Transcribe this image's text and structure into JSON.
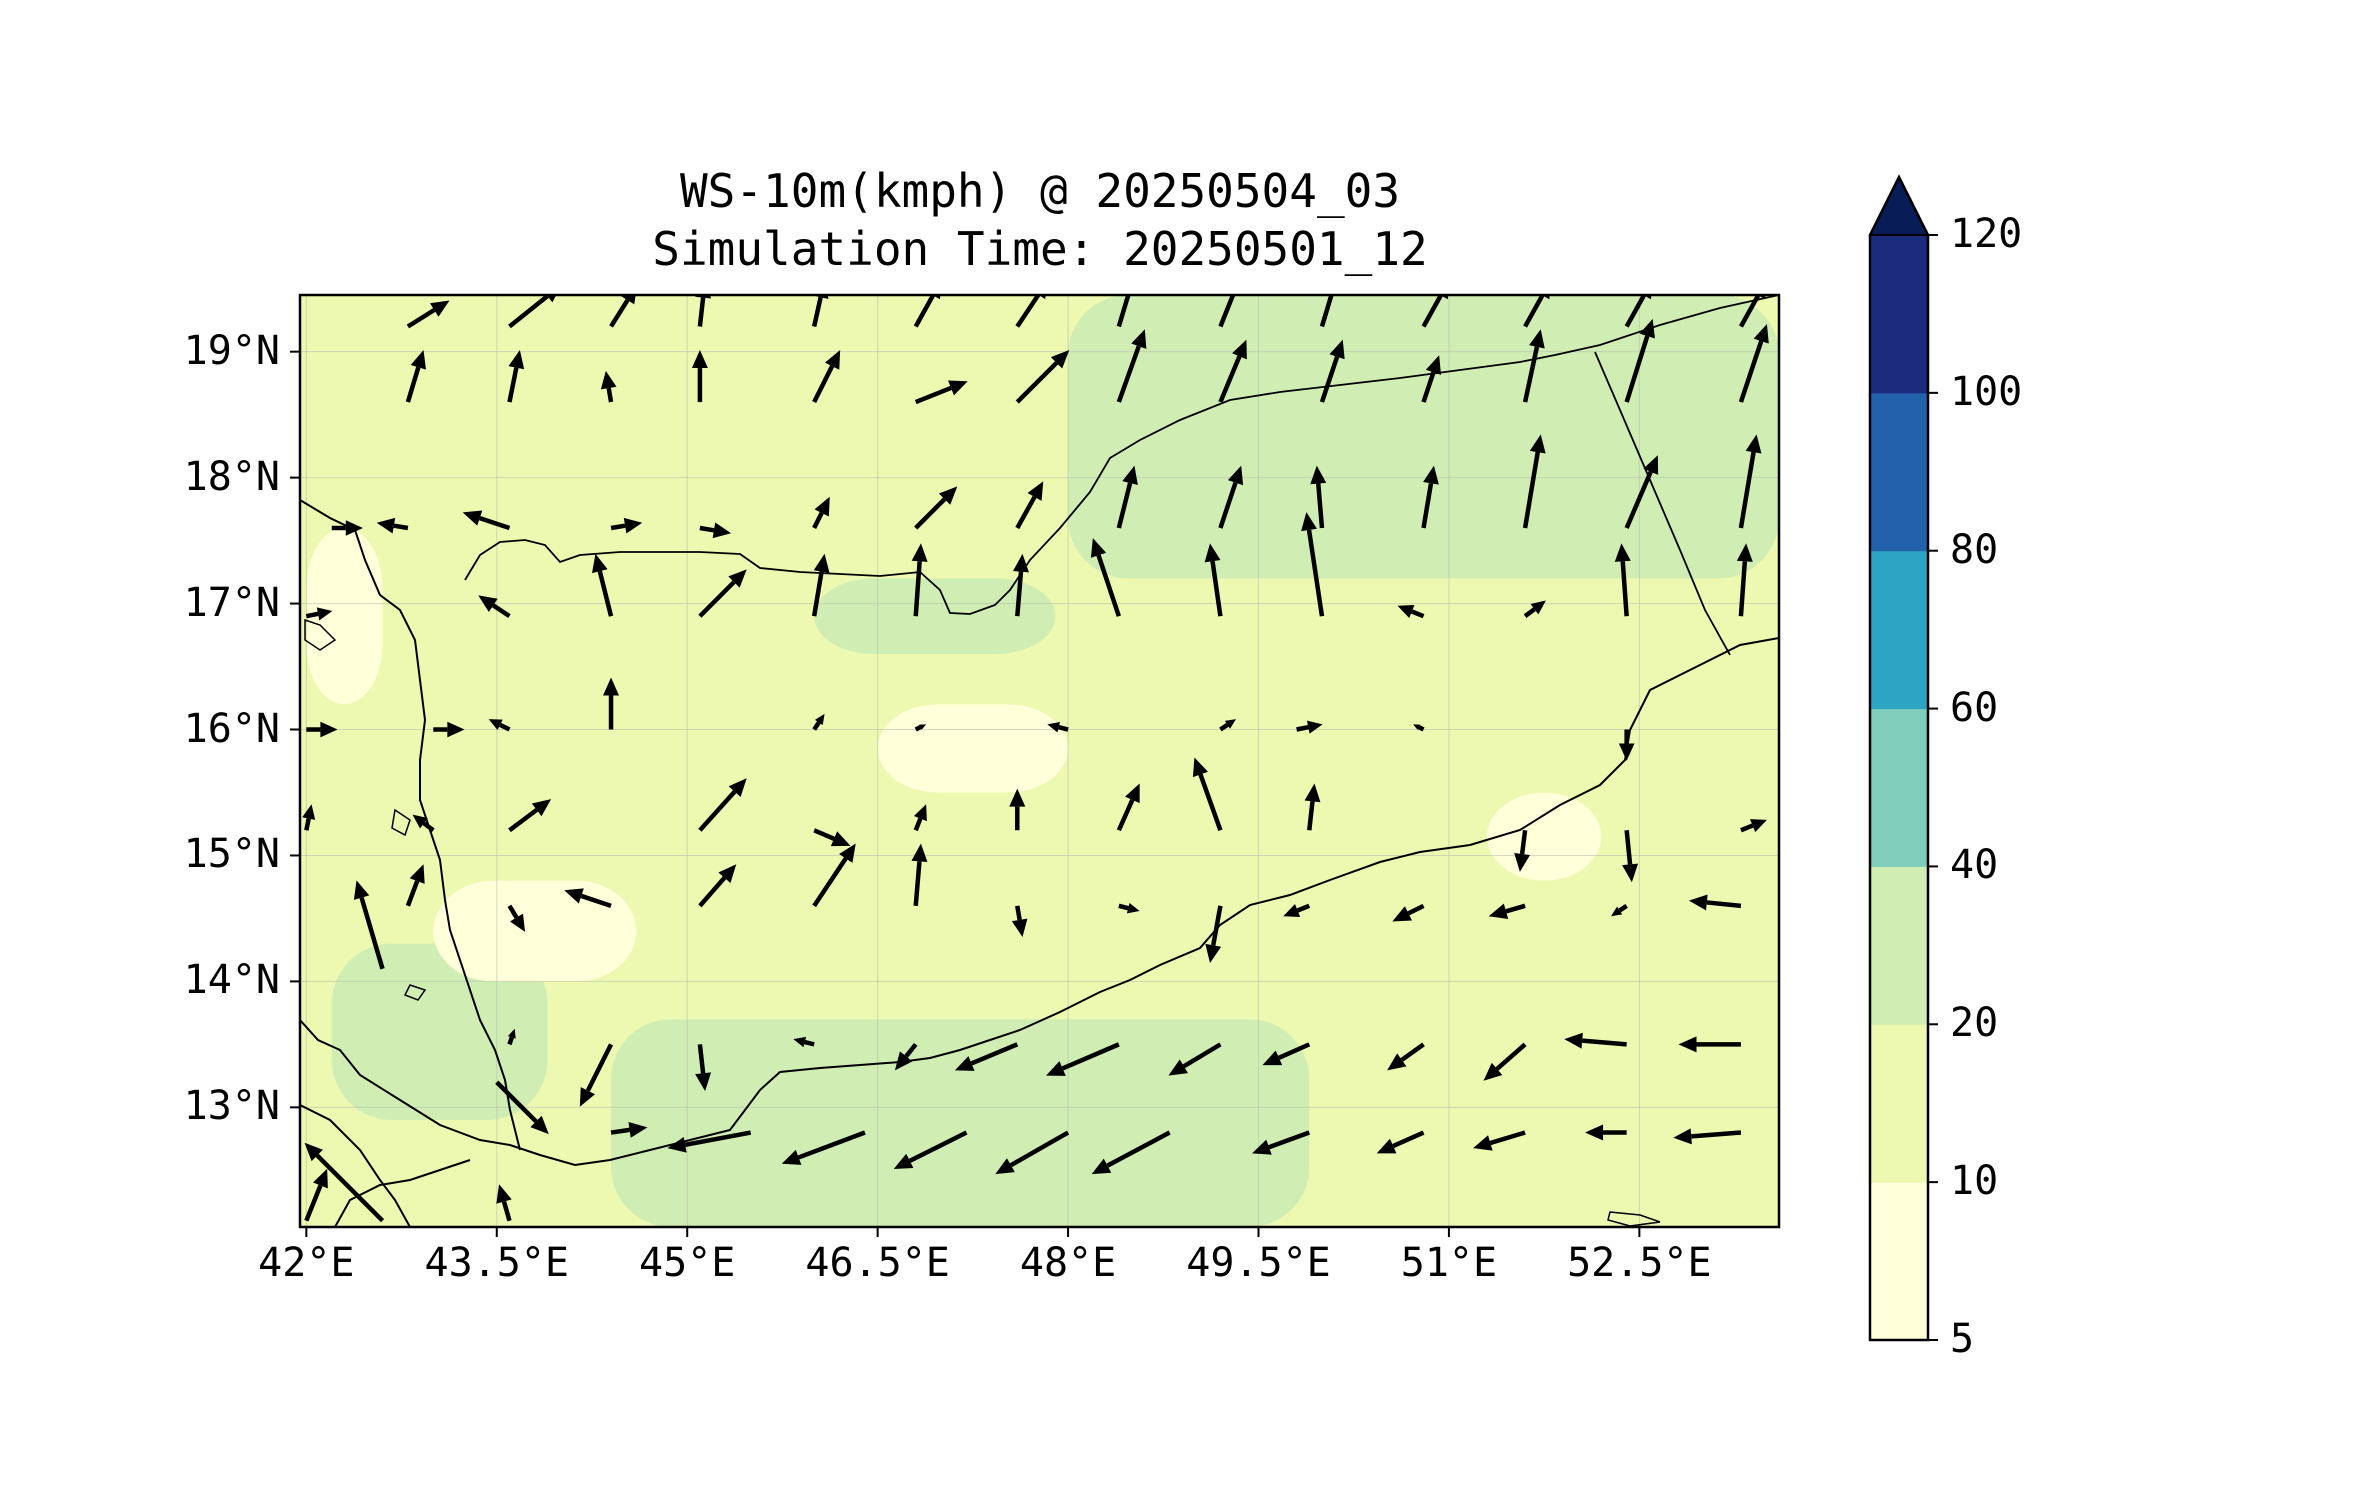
{
  "title": {
    "line1": "WS-10m(kmph) @ 20250504_03",
    "line2": "Simulation Time: 20250501_12"
  },
  "chart_data": {
    "type": "wind-vector-map",
    "variable": "WS-10m(kmph)",
    "valid_time": "20250504_03",
    "simulation_time": "20250501_12",
    "extent": {
      "lon": [
        41.95,
        53.6
      ],
      "lat": [
        12.05,
        19.45
      ]
    },
    "lon_ticks": [
      42,
      43.5,
      45,
      46.5,
      48,
      49.5,
      51,
      52.5
    ],
    "lon_tick_labels": [
      "42°E",
      "43.5°E",
      "45°E",
      "46.5°E",
      "48°E",
      "49.5°E",
      "51°E",
      "52.5°E"
    ],
    "lat_ticks": [
      13,
      14,
      15,
      16,
      17,
      18,
      19
    ],
    "lat_tick_labels": [
      "13°N",
      "14°N",
      "15°N",
      "16°N",
      "17°N",
      "18°N",
      "19°N"
    ],
    "grid": true,
    "colorbar": {
      "levels": [
        5,
        10,
        20,
        40,
        60,
        80,
        100,
        120
      ],
      "labels": [
        "5",
        "10",
        "20",
        "40",
        "60",
        "80",
        "100",
        "120"
      ],
      "colors": [
        "#ffffd9",
        "#edf8b1",
        "#d0edb3",
        "#7fcdbb",
        "#2ca5c4",
        "#2162aa",
        "#1d2b7f"
      ],
      "extend": "max",
      "extend_color": "#081d58",
      "placement": "right"
    },
    "fill_regions": [
      {
        "level": 10,
        "lon": [
          41.95,
          53.6
        ],
        "lat": [
          12.05,
          19.45
        ]
      },
      {
        "level": 20,
        "lon": [
          48.0,
          53.6
        ],
        "lat": [
          17.2,
          19.45
        ]
      },
      {
        "level": 20,
        "lon": [
          44.4,
          49.9
        ],
        "lat": [
          12.05,
          13.7
        ]
      },
      {
        "level": 20,
        "lon": [
          42.2,
          43.9
        ],
        "lat": [
          12.9,
          14.3
        ]
      },
      {
        "level": 20,
        "lon": [
          46.0,
          47.9
        ],
        "lat": [
          16.6,
          17.2
        ]
      },
      {
        "level": 5,
        "lon": [
          42.0,
          42.6
        ],
        "lat": [
          16.2,
          17.6
        ]
      },
      {
        "level": 5,
        "lon": [
          46.5,
          48.0
        ],
        "lat": [
          15.5,
          16.2
        ]
      },
      {
        "level": 5,
        "lon": [
          51.3,
          52.2
        ],
        "lat": [
          14.8,
          15.5
        ]
      },
      {
        "level": 5,
        "lon": [
          43.0,
          44.6
        ],
        "lat": [
          14.0,
          14.8
        ]
      }
    ],
    "wind_vectors": [
      {
        "lon": 42.8,
        "lat": 19.2,
        "u": 8,
        "v": 5
      },
      {
        "lon": 43.6,
        "lat": 19.2,
        "u": 10,
        "v": 8
      },
      {
        "lon": 44.4,
        "lat": 19.2,
        "u": 5,
        "v": 8
      },
      {
        "lon": 45.1,
        "lat": 19.2,
        "u": 1,
        "v": 9
      },
      {
        "lon": 46.0,
        "lat": 19.2,
        "u": 2,
        "v": 9
      },
      {
        "lon": 46.8,
        "lat": 19.2,
        "u": 5,
        "v": 9
      },
      {
        "lon": 47.6,
        "lat": 19.2,
        "u": 6,
        "v": 9
      },
      {
        "lon": 48.4,
        "lat": 19.2,
        "u": 3,
        "v": 10
      },
      {
        "lon": 49.2,
        "lat": 19.2,
        "u": 4,
        "v": 10
      },
      {
        "lon": 50.0,
        "lat": 19.2,
        "u": 3,
        "v": 10
      },
      {
        "lon": 50.8,
        "lat": 19.2,
        "u": 5,
        "v": 9
      },
      {
        "lon": 51.6,
        "lat": 19.2,
        "u": 5,
        "v": 9
      },
      {
        "lon": 52.4,
        "lat": 19.2,
        "u": 5,
        "v": 9
      },
      {
        "lon": 53.3,
        "lat": 19.2,
        "u": 5,
        "v": 9
      },
      {
        "lon": 42.8,
        "lat": 18.6,
        "u": 3,
        "v": 10
      },
      {
        "lon": 43.6,
        "lat": 18.6,
        "u": 2,
        "v": 10
      },
      {
        "lon": 44.4,
        "lat": 18.6,
        "u": -1,
        "v": 6
      },
      {
        "lon": 45.1,
        "lat": 18.6,
        "u": 0,
        "v": 10
      },
      {
        "lon": 46.0,
        "lat": 18.6,
        "u": 5,
        "v": 10
      },
      {
        "lon": 46.8,
        "lat": 18.6,
        "u": 10,
        "v": 4
      },
      {
        "lon": 47.6,
        "lat": 18.6,
        "u": 10,
        "v": 10
      },
      {
        "lon": 48.4,
        "lat": 18.6,
        "u": 5,
        "v": 14
      },
      {
        "lon": 49.2,
        "lat": 18.6,
        "u": 5,
        "v": 12
      },
      {
        "lon": 50.0,
        "lat": 18.6,
        "u": 4,
        "v": 12
      },
      {
        "lon": 50.8,
        "lat": 18.6,
        "u": 3,
        "v": 9
      },
      {
        "lon": 51.6,
        "lat": 18.6,
        "u": 3,
        "v": 14
      },
      {
        "lon": 52.4,
        "lat": 18.6,
        "u": 5,
        "v": 16
      },
      {
        "lon": 53.3,
        "lat": 18.6,
        "u": 5,
        "v": 15
      },
      {
        "lon": 42.2,
        "lat": 17.6,
        "u": 6,
        "v": 0
      },
      {
        "lon": 42.8,
        "lat": 17.6,
        "u": -6,
        "v": 1
      },
      {
        "lon": 43.6,
        "lat": 17.6,
        "u": -9,
        "v": 3
      },
      {
        "lon": 44.4,
        "lat": 17.6,
        "u": 6,
        "v": 1
      },
      {
        "lon": 45.1,
        "lat": 17.6,
        "u": 6,
        "v": -1
      },
      {
        "lon": 46.0,
        "lat": 17.6,
        "u": 3,
        "v": 6
      },
      {
        "lon": 46.8,
        "lat": 17.6,
        "u": 8,
        "v": 8
      },
      {
        "lon": 47.6,
        "lat": 17.6,
        "u": 5,
        "v": 9
      },
      {
        "lon": 48.4,
        "lat": 17.6,
        "u": 3,
        "v": 12
      },
      {
        "lon": 49.2,
        "lat": 17.6,
        "u": 4,
        "v": 12
      },
      {
        "lon": 50.0,
        "lat": 17.6,
        "u": -1,
        "v": 12
      },
      {
        "lon": 50.8,
        "lat": 17.6,
        "u": 2,
        "v": 12
      },
      {
        "lon": 51.6,
        "lat": 17.6,
        "u": 3,
        "v": 18
      },
      {
        "lon": 52.4,
        "lat": 17.6,
        "u": 6,
        "v": 14
      },
      {
        "lon": 53.3,
        "lat": 17.6,
        "u": 3,
        "v": 18
      },
      {
        "lon": 42.0,
        "lat": 16.9,
        "u": 5,
        "v": 1
      },
      {
        "lon": 43.6,
        "lat": 16.9,
        "u": -6,
        "v": 4
      },
      {
        "lon": 44.4,
        "lat": 16.9,
        "u": -3,
        "v": 12
      },
      {
        "lon": 45.1,
        "lat": 16.9,
        "u": 9,
        "v": 9
      },
      {
        "lon": 46.0,
        "lat": 16.9,
        "u": 2,
        "v": 12
      },
      {
        "lon": 46.8,
        "lat": 16.9,
        "u": 1,
        "v": 14
      },
      {
        "lon": 47.6,
        "lat": 16.9,
        "u": 1,
        "v": 12
      },
      {
        "lon": 48.4,
        "lat": 16.9,
        "u": -5,
        "v": 15
      },
      {
        "lon": 49.2,
        "lat": 16.9,
        "u": -2,
        "v": 14
      },
      {
        "lon": 50.0,
        "lat": 16.9,
        "u": -3,
        "v": 20
      },
      {
        "lon": 50.8,
        "lat": 16.9,
        "u": -5,
        "v": 2
      },
      {
        "lon": 51.6,
        "lat": 16.9,
        "u": 4,
        "v": 3
      },
      {
        "lon": 52.4,
        "lat": 16.9,
        "u": -1,
        "v": 14
      },
      {
        "lon": 53.3,
        "lat": 16.9,
        "u": 1,
        "v": 14
      },
      {
        "lon": 42.0,
        "lat": 16.0,
        "u": 6,
        "v": 0
      },
      {
        "lon": 43.0,
        "lat": 16.0,
        "u": 6,
        "v": 0
      },
      {
        "lon": 43.6,
        "lat": 16.0,
        "u": -4,
        "v": 2
      },
      {
        "lon": 44.4,
        "lat": 16.0,
        "u": 0,
        "v": 10
      },
      {
        "lon": 46.0,
        "lat": 16.0,
        "u": 2,
        "v": 3
      },
      {
        "lon": 46.8,
        "lat": 16.0,
        "u": 2,
        "v": 1
      },
      {
        "lon": 48.0,
        "lat": 16.0,
        "u": -4,
        "v": 1
      },
      {
        "lon": 49.2,
        "lat": 16.0,
        "u": 3,
        "v": 2
      },
      {
        "lon": 49.8,
        "lat": 16.0,
        "u": 5,
        "v": 1
      },
      {
        "lon": 50.8,
        "lat": 16.0,
        "u": -2,
        "v": 1
      },
      {
        "lon": 52.4,
        "lat": 16.0,
        "u": 0,
        "v": -6
      },
      {
        "lon": 42.0,
        "lat": 15.2,
        "u": 1,
        "v": 5
      },
      {
        "lon": 43.0,
        "lat": 15.2,
        "u": -4,
        "v": 3
      },
      {
        "lon": 43.6,
        "lat": 15.2,
        "u": 8,
        "v": 6
      },
      {
        "lon": 45.1,
        "lat": 15.2,
        "u": 9,
        "v": 10
      },
      {
        "lon": 46.0,
        "lat": 15.2,
        "u": 7,
        "v": -3
      },
      {
        "lon": 46.8,
        "lat": 15.2,
        "u": 2,
        "v": 5
      },
      {
        "lon": 47.6,
        "lat": 15.2,
        "u": 0,
        "v": 8
      },
      {
        "lon": 48.4,
        "lat": 15.2,
        "u": 4,
        "v": 9
      },
      {
        "lon": 49.2,
        "lat": 15.2,
        "u": -5,
        "v": 14
      },
      {
        "lon": 49.9,
        "lat": 15.2,
        "u": 1,
        "v": 9
      },
      {
        "lon": 51.6,
        "lat": 15.2,
        "u": -1,
        "v": -8
      },
      {
        "lon": 52.4,
        "lat": 15.2,
        "u": 1,
        "v": -10
      },
      {
        "lon": 53.3,
        "lat": 15.2,
        "u": 5,
        "v": 2
      },
      {
        "lon": 42.8,
        "lat": 14.6,
        "u": 3,
        "v": 8
      },
      {
        "lon": 43.6,
        "lat": 14.6,
        "u": 3,
        "v": -5
      },
      {
        "lon": 44.4,
        "lat": 14.6,
        "u": -9,
        "v": 3
      },
      {
        "lon": 45.1,
        "lat": 14.6,
        "u": 7,
        "v": 8
      },
      {
        "lon": 46.0,
        "lat": 14.6,
        "u": 8,
        "v": 12
      },
      {
        "lon": 46.8,
        "lat": 14.6,
        "u": 1,
        "v": 12
      },
      {
        "lon": 47.6,
        "lat": 14.6,
        "u": 1,
        "v": -6
      },
      {
        "lon": 48.4,
        "lat": 14.6,
        "u": 4,
        "v": -1
      },
      {
        "lon": 49.2,
        "lat": 14.6,
        "u": -2,
        "v": -11
      },
      {
        "lon": 49.9,
        "lat": 14.6,
        "u": -5,
        "v": -2
      },
      {
        "lon": 50.8,
        "lat": 14.6,
        "u": -6,
        "v": -3
      },
      {
        "lon": 51.6,
        "lat": 14.6,
        "u": -7,
        "v": -2
      },
      {
        "lon": 52.4,
        "lat": 14.6,
        "u": -3,
        "v": -2
      },
      {
        "lon": 53.3,
        "lat": 14.6,
        "u": -10,
        "v": 1
      },
      {
        "lon": 42.6,
        "lat": 14.1,
        "u": -5,
        "v": 17
      },
      {
        "lon": 43.6,
        "lat": 13.5,
        "u": 1,
        "v": 3
      },
      {
        "lon": 44.4,
        "lat": 13.5,
        "u": -6,
        "v": -12
      },
      {
        "lon": 45.1,
        "lat": 13.5,
        "u": 1,
        "v": -9
      },
      {
        "lon": 46.0,
        "lat": 13.5,
        "u": -4,
        "v": 1
      },
      {
        "lon": 46.8,
        "lat": 13.5,
        "u": -4,
        "v": -5
      },
      {
        "lon": 47.6,
        "lat": 13.5,
        "u": -12,
        "v": -5
      },
      {
        "lon": 48.4,
        "lat": 13.5,
        "u": -14,
        "v": -6
      },
      {
        "lon": 49.2,
        "lat": 13.5,
        "u": -10,
        "v": -6
      },
      {
        "lon": 49.9,
        "lat": 13.5,
        "u": -9,
        "v": -4
      },
      {
        "lon": 50.8,
        "lat": 13.5,
        "u": -7,
        "v": -5
      },
      {
        "lon": 51.6,
        "lat": 13.5,
        "u": -8,
        "v": -7
      },
      {
        "lon": 52.4,
        "lat": 13.5,
        "u": -12,
        "v": 1
      },
      {
        "lon": 53.3,
        "lat": 13.5,
        "u": -12,
        "v": 0
      },
      {
        "lon": 43.5,
        "lat": 13.2,
        "u": 10,
        "v": -10
      },
      {
        "lon": 44.4,
        "lat": 12.8,
        "u": 7,
        "v": 1
      },
      {
        "lon": 45.5,
        "lat": 12.8,
        "u": -16,
        "v": -3
      },
      {
        "lon": 46.4,
        "lat": 12.8,
        "u": -16,
        "v": -6
      },
      {
        "lon": 47.2,
        "lat": 12.8,
        "u": -14,
        "v": -7
      },
      {
        "lon": 48.0,
        "lat": 12.8,
        "u": -14,
        "v": -8
      },
      {
        "lon": 48.8,
        "lat": 12.8,
        "u": -15,
        "v": -8
      },
      {
        "lon": 49.9,
        "lat": 12.8,
        "u": -11,
        "v": -4
      },
      {
        "lon": 50.8,
        "lat": 12.8,
        "u": -9,
        "v": -4
      },
      {
        "lon": 51.6,
        "lat": 12.8,
        "u": -10,
        "v": -3
      },
      {
        "lon": 52.4,
        "lat": 12.8,
        "u": -8,
        "v": 0
      },
      {
        "lon": 53.3,
        "lat": 12.8,
        "u": -13,
        "v": -1
      },
      {
        "lon": 42.0,
        "lat": 12.1,
        "u": 4,
        "v": 10
      },
      {
        "lon": 42.6,
        "lat": 12.1,
        "u": -15,
        "v": 15
      },
      {
        "lon": 43.6,
        "lat": 12.1,
        "u": -2,
        "v": 7
      }
    ]
  }
}
